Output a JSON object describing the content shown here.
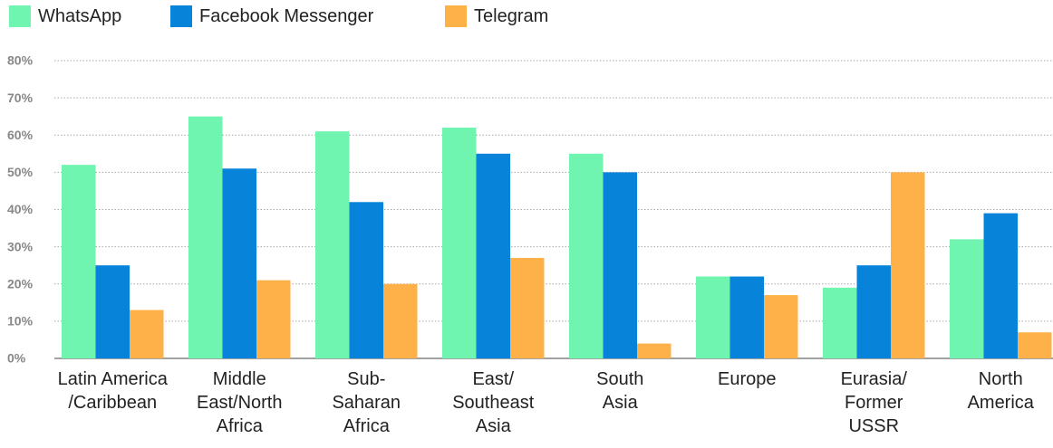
{
  "chart_data": {
    "type": "bar",
    "categories": [
      "Latin America\n/Caribbean",
      "Middle\nEast/North\nAfrica",
      "Sub-\nSaharan\nAfrica",
      "East/\nSoutheast\nAsia",
      "South\nAsia",
      "Europe",
      "Eurasia/\nFormer\nUSSR",
      "North\nAmerica"
    ],
    "series": [
      {
        "name": "WhatsApp",
        "color": "#6ff5b0",
        "values": [
          52,
          65,
          61,
          62,
          55,
          22,
          19,
          32
        ]
      },
      {
        "name": "Facebook Messenger",
        "color": "#0784da",
        "values": [
          25,
          51,
          42,
          55,
          50,
          22,
          25,
          39
        ]
      },
      {
        "name": "Telegram",
        "color": "#fdb148",
        "values": [
          13,
          21,
          20,
          27,
          4,
          17,
          50,
          7
        ]
      }
    ],
    "ylim": [
      0,
      80
    ],
    "yticks": [
      {
        "value": 0,
        "label": "0%"
      },
      {
        "value": 10,
        "label": "10%"
      },
      {
        "value": 20,
        "label": "20%"
      },
      {
        "value": 30,
        "label": "30%"
      },
      {
        "value": 40,
        "label": "40%"
      },
      {
        "value": 50,
        "label": "50%"
      },
      {
        "value": 60,
        "label": "60%"
      },
      {
        "value": 70,
        "label": "70%"
      },
      {
        "value": 80,
        "label": "80%"
      }
    ],
    "grid": true,
    "legend": "top-left"
  }
}
